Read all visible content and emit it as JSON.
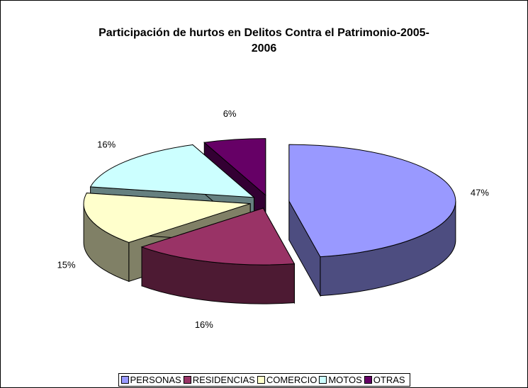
{
  "chart_data": {
    "type": "pie",
    "title": "Participación de hurtos en Delitos Contra el Patrimonio-2005-2006",
    "categories": [
      "PERSONAS",
      "RESIDENCIAS",
      "COMERCIO",
      "MOTOS",
      "OTRAS"
    ],
    "values": [
      47,
      16,
      15,
      16,
      6
    ],
    "value_labels": [
      "47%",
      "16%",
      "15%",
      "16%",
      "6%"
    ],
    "colors": [
      "#9999ff",
      "#993366",
      "#ffffcc",
      "#ccffff",
      "#660066"
    ],
    "legend": "bottom"
  }
}
